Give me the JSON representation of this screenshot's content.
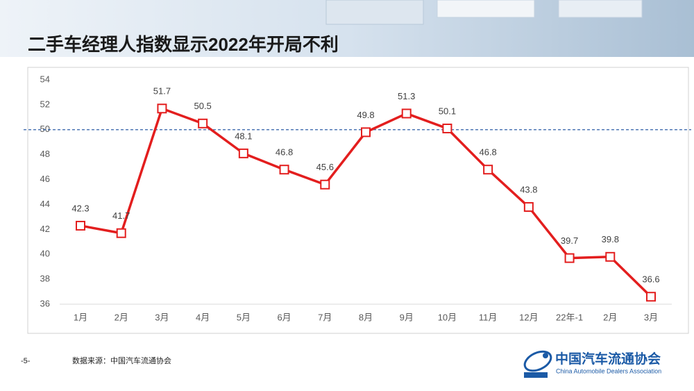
{
  "chart_data": {
    "type": "line",
    "title": "二手车经理人指数显示2022年开局不利",
    "categories": [
      "1月",
      "2月",
      "3月",
      "4月",
      "5月",
      "6月",
      "7月",
      "8月",
      "9月",
      "10月",
      "11月",
      "12月",
      "22年-1",
      "2月",
      "3月"
    ],
    "values": [
      42.3,
      41.7,
      51.7,
      50.5,
      48.1,
      46.8,
      45.6,
      49.8,
      51.3,
      50.1,
      46.8,
      43.8,
      39.7,
      39.8,
      36.6
    ],
    "color": "#e31e1e",
    "ylim": [
      36,
      54
    ],
    "yticks": [
      36,
      38,
      40,
      42,
      44,
      46,
      48,
      50,
      52,
      54
    ],
    "reference_line": 50,
    "reference_color": "#2e5fa8",
    "grid": false
  },
  "footer": {
    "page": "-5-",
    "source": "数据来源：中国汽车流通协会",
    "org_name": "中国汽车流通协会",
    "org_english": "China Automobile Dealers Association"
  }
}
